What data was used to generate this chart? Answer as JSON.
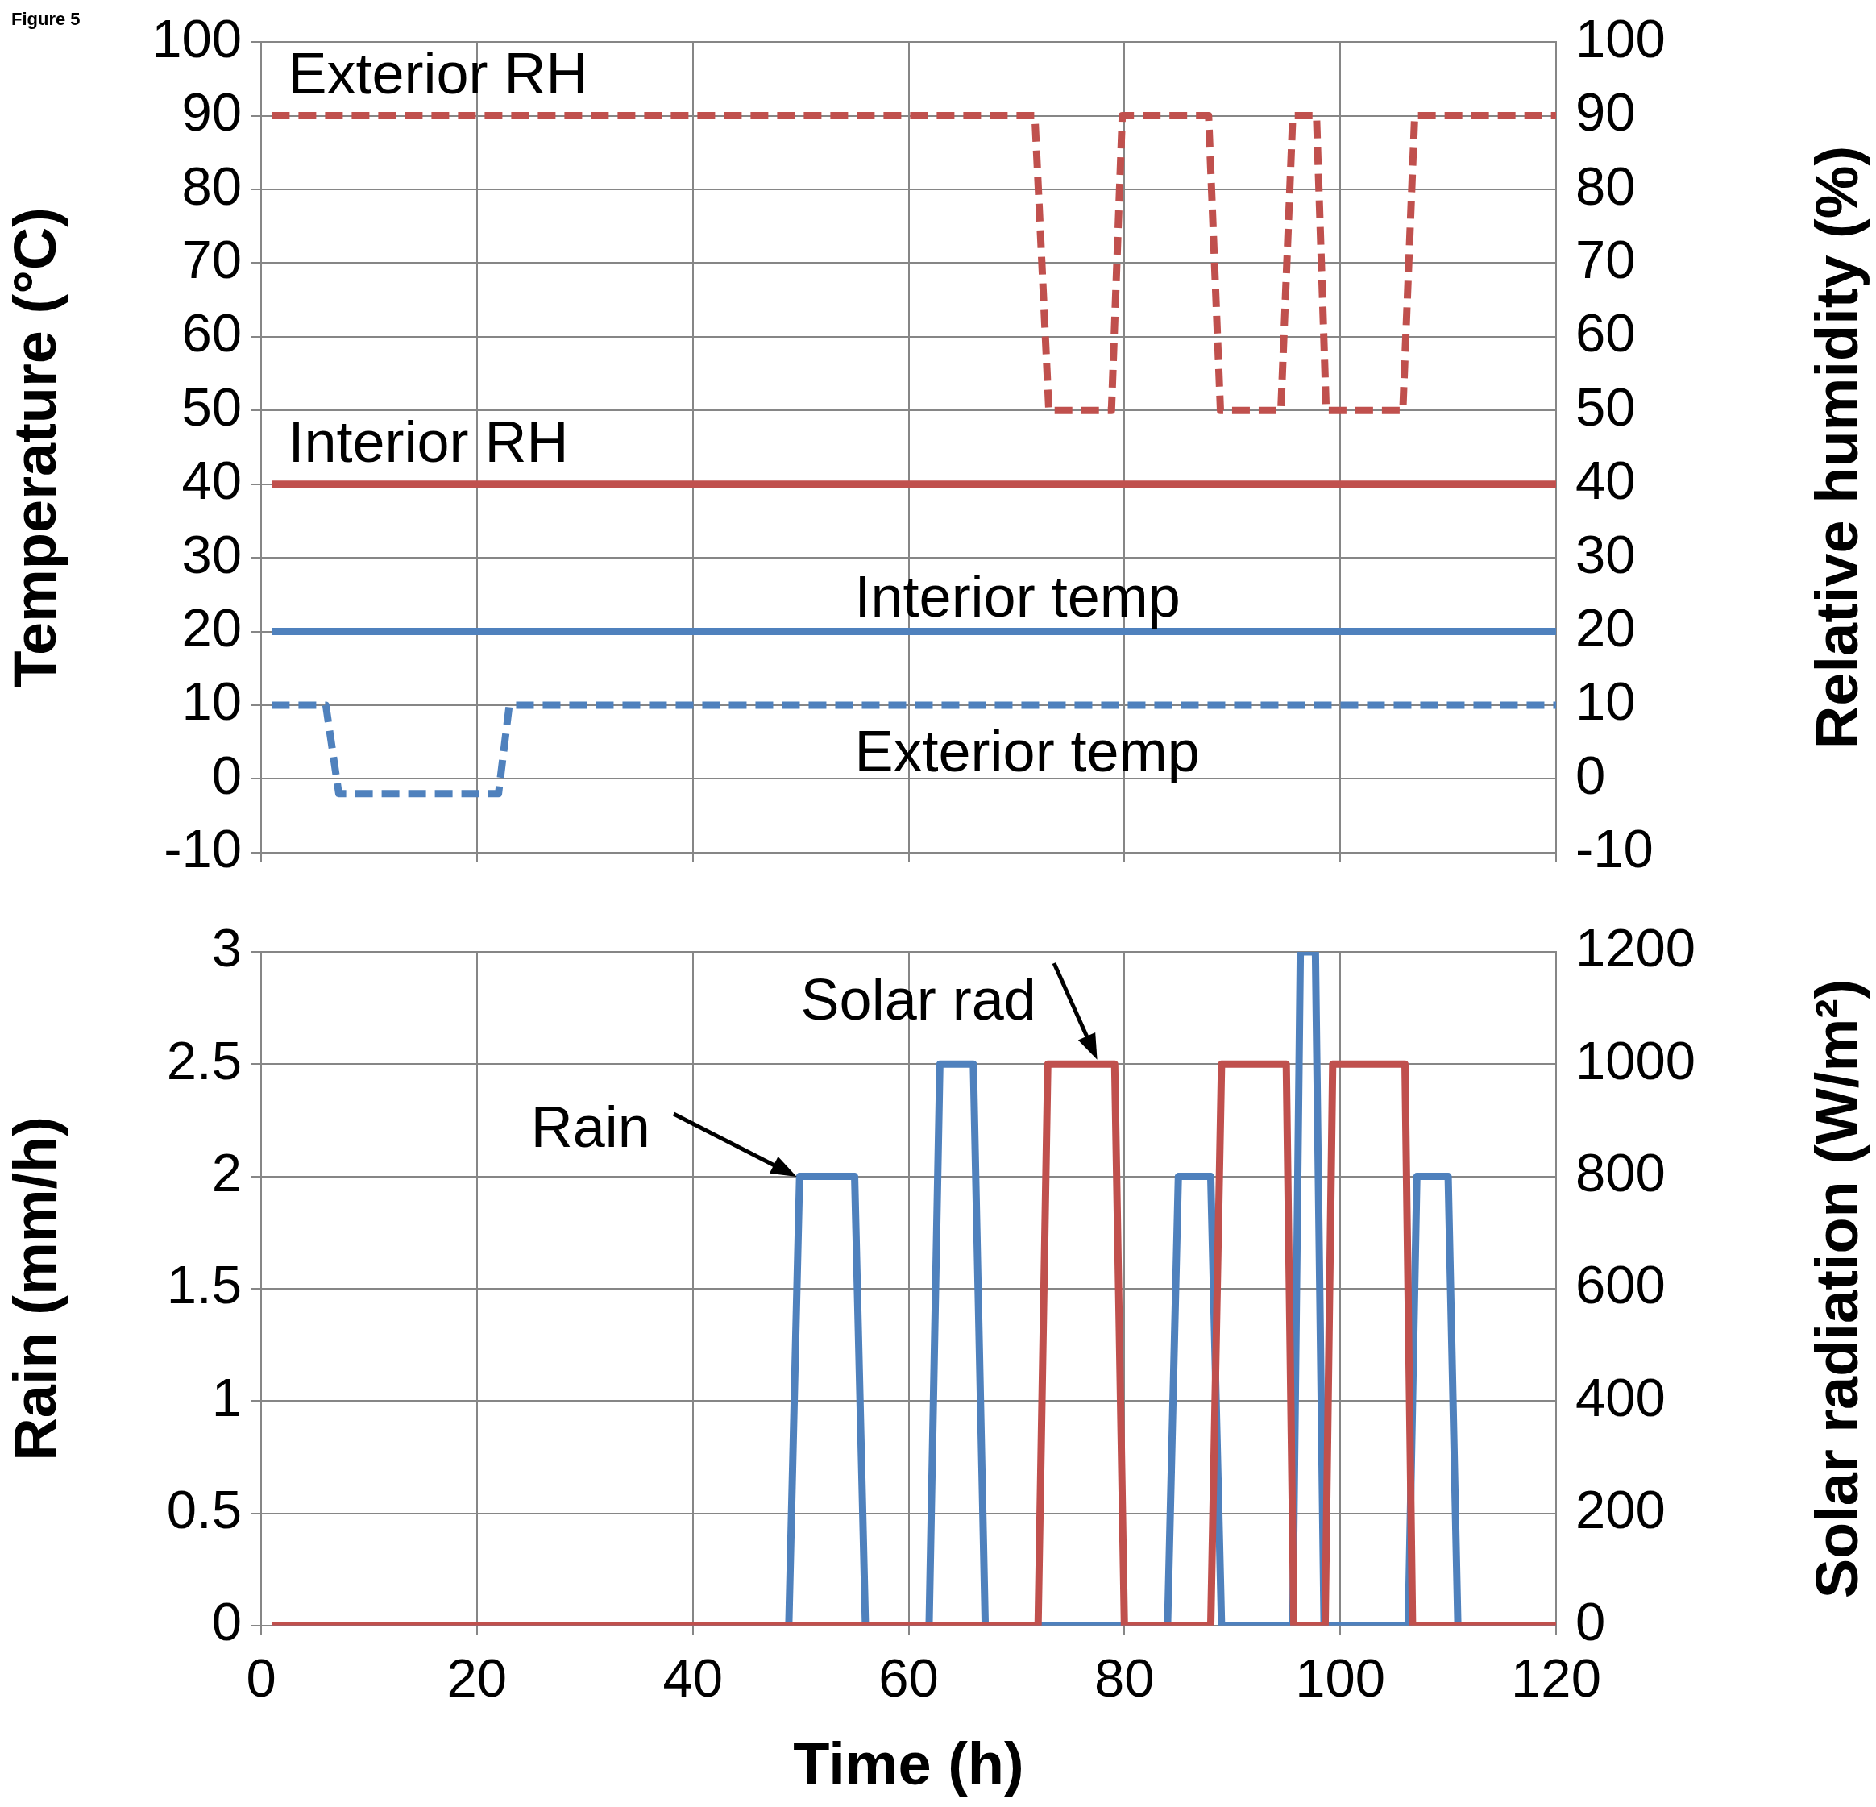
{
  "chart_data": [
    {
      "type": "line",
      "annotations": [
        "Figure 5"
      ],
      "ylabel": "Temperature (°C)",
      "y2label": "Relative humidity (%)",
      "xlim": [
        0,
        120
      ],
      "xticks": [
        0,
        20,
        40,
        60,
        80,
        100,
        120
      ],
      "ylim": [
        -10,
        100
      ],
      "yticks": [
        -10,
        0,
        10,
        20,
        30,
        40,
        50,
        60,
        70,
        80,
        90,
        100
      ],
      "y2lim": [
        -10,
        100
      ],
      "y2ticks": [
        -10,
        0,
        10,
        20,
        30,
        40,
        50,
        60,
        70,
        80,
        90,
        100
      ],
      "grid": true,
      "tick_labels": "y",
      "marker": "none",
      "series": [
        {
          "name": "Exterior RH",
          "color": "#c0504d",
          "axis": "y2",
          "line_style": "dashed",
          "x": [
            1,
            71.7,
            73,
            78.8,
            79.8,
            87.8,
            88.9,
            94.5,
            95.6,
            96.9,
            97.8,
            98.7,
            105.8,
            106.9,
            120
          ],
          "values": [
            90,
            90,
            50,
            50,
            90,
            90,
            50,
            50,
            90,
            90,
            90,
            50,
            50,
            90,
            90
          ]
        },
        {
          "name": "Interior RH",
          "color": "#c0504d",
          "axis": "y2",
          "line_style": "solid",
          "x": [
            1,
            120
          ],
          "values": [
            40,
            40
          ]
        },
        {
          "name": "Interior temp",
          "color": "#4f81bd",
          "line_style": "solid",
          "x": [
            1,
            120
          ],
          "values": [
            20,
            20
          ]
        },
        {
          "name": "Exterior temp",
          "color": "#4f81bd",
          "line_style": "dashed",
          "x": [
            1,
            6,
            7.2,
            22,
            23,
            120
          ],
          "values": [
            10,
            10,
            -2,
            -2,
            10,
            10
          ]
        }
      ]
    },
    {
      "type": "line",
      "xlabel": "Time (h)",
      "ylabel": "Rain (mm/h)",
      "y2label": "Solar radiation (W/m²)",
      "xlim": [
        0,
        120
      ],
      "xticks": [
        0,
        20,
        40,
        60,
        80,
        100,
        120
      ],
      "ylim": [
        0,
        3
      ],
      "yticks": [
        0,
        0.5,
        1,
        1.5,
        2,
        2.5,
        3
      ],
      "y2lim": [
        0,
        1200
      ],
      "y2ticks": [
        0,
        200,
        400,
        600,
        800,
        1000,
        1200
      ],
      "grid": true,
      "marker": "none",
      "series": [
        {
          "name": "Rain",
          "color": "#4f81bd",
          "line_style": "solid",
          "x": [
            1,
            48.9,
            49.9,
            55,
            56,
            61.9,
            62.9,
            66,
            67.1,
            84,
            85,
            88,
            89,
            95.6,
            96.3,
            97.7,
            98.5,
            106.3,
            107.1,
            110,
            110.9,
            120
          ],
          "values": [
            0,
            0,
            2,
            2,
            0,
            0,
            2.5,
            2.5,
            0,
            0,
            2,
            2,
            0,
            0,
            3,
            3,
            0,
            0,
            2,
            2,
            0,
            0
          ]
        },
        {
          "name": "Solar rad",
          "color": "#c0504d",
          "axis": "y2",
          "line_style": "solid",
          "x": [
            1,
            72,
            72.9,
            79.1,
            80,
            88,
            89,
            95,
            95.7,
            98.6,
            99.3,
            106,
            106.7,
            120
          ],
          "values": [
            0,
            0,
            1000,
            1000,
            0,
            0,
            1000,
            1000,
            0,
            0,
            1000,
            1000,
            0,
            0
          ]
        }
      ]
    }
  ]
}
